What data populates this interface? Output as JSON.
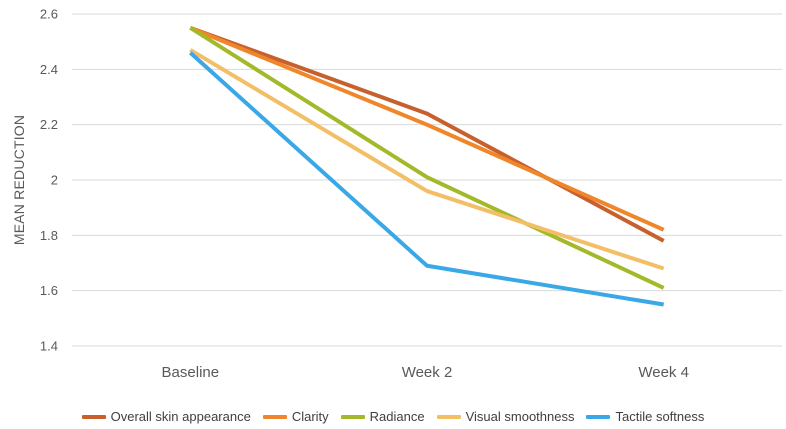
{
  "chart_data": {
    "type": "line",
    "title": "",
    "xlabel": "",
    "ylabel": "MEAN REDUCTION",
    "categories": [
      "Baseline",
      "Week 2",
      "Week 4"
    ],
    "ylim": [
      1.4,
      2.6
    ],
    "yticks": [
      "1.4",
      "1.6",
      "1.8",
      "2",
      "2.2",
      "2.4",
      "2.6"
    ],
    "grid": true,
    "legend_position": "bottom",
    "series": [
      {
        "name": "Overall skin appearance",
        "color": "#C8602E",
        "values": [
          2.55,
          2.24,
          1.78
        ]
      },
      {
        "name": "Clarity",
        "color": "#F0862A",
        "values": [
          2.55,
          2.2,
          1.82
        ]
      },
      {
        "name": "Radiance",
        "color": "#A4B92A",
        "values": [
          2.55,
          2.01,
          1.61
        ]
      },
      {
        "name": "Visual smoothness",
        "color": "#F3BF66",
        "values": [
          2.47,
          1.96,
          1.68
        ]
      },
      {
        "name": "Tactile softness",
        "color": "#3AA8E6",
        "values": [
          2.46,
          1.69,
          1.55
        ]
      }
    ]
  }
}
